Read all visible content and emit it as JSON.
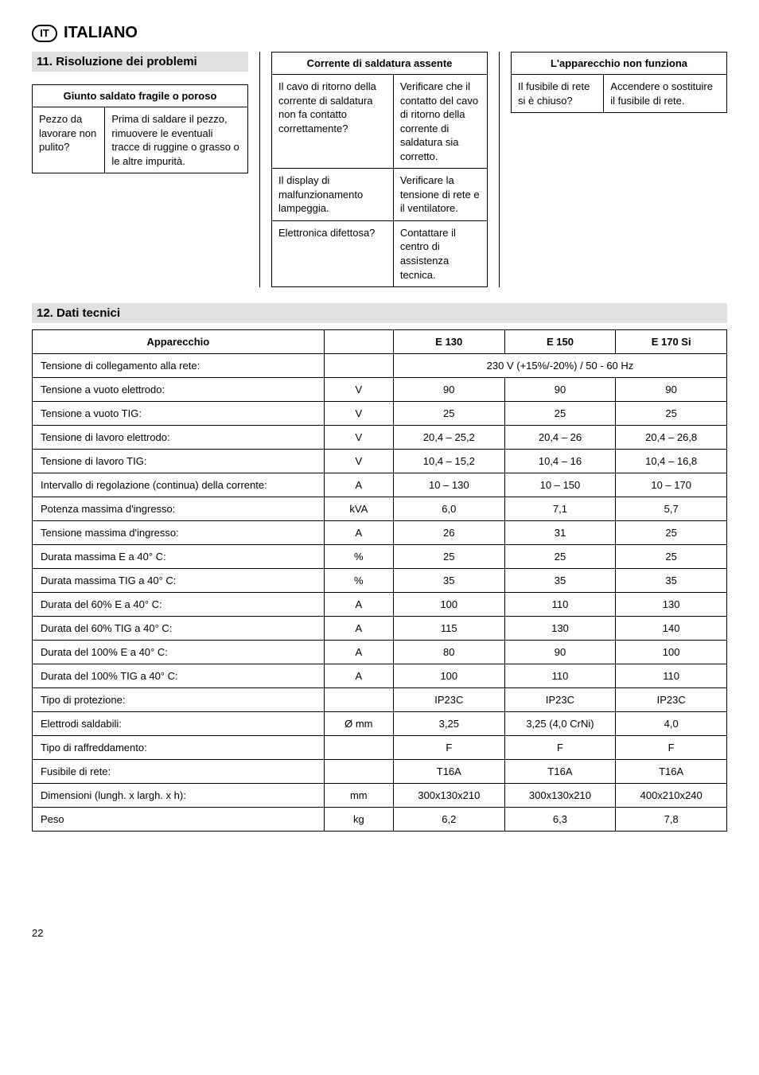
{
  "lang": {
    "code": "IT",
    "label": "ITALIANO"
  },
  "section11": {
    "title": "11. Risoluzione dei problemi"
  },
  "tableA": {
    "header": "Giunto saldato fragile o poroso",
    "rows": [
      {
        "left": "Pezzo da lavorare non pulito?",
        "right": "Prima di saldare il pezzo, rimuovere le eventuali tracce di ruggine o grasso o le altre impurità."
      }
    ]
  },
  "tableB": {
    "header": "Corrente di saldatura assente",
    "rows": [
      {
        "left": "Il cavo di ritorno della corrente di saldatura non fa contatto correttamente?",
        "right": "Verificare che il contatto del cavo di ritorno della corrente di saldatura sia corretto."
      },
      {
        "left": "Il display di malfunzionamento lampeggia.",
        "right": "Verificare la tensione di rete e il ventilatore."
      },
      {
        "left": "Elettronica difettosa?",
        "right": "Contattare il centro di assistenza tecnica."
      }
    ]
  },
  "tableC": {
    "header": "L'apparecchio non funziona",
    "rows": [
      {
        "left": "Il fusibile di rete si è chiuso?",
        "right": "Accendere o sostituire il fusibile di rete."
      }
    ]
  },
  "section12": {
    "title": "12. Dati tecnici"
  },
  "specs": {
    "columns": [
      "Apparecchio",
      "",
      "E 130",
      "E 150",
      "E 170 Si"
    ],
    "rows": [
      {
        "param": "Tensione di collegamento alla rete:",
        "unit": "",
        "span": "230 V (+15%/-20%) / 50 - 60 Hz"
      },
      {
        "param": "Tensione a vuoto elettrodo:",
        "unit": "V",
        "v1": "90",
        "v2": "90",
        "v3": "90"
      },
      {
        "param": "Tensione a vuoto TIG:",
        "unit": "V",
        "v1": "25",
        "v2": "25",
        "v3": "25"
      },
      {
        "param": "Tensione di lavoro elettrodo:",
        "unit": "V",
        "v1": "20,4 – 25,2",
        "v2": "20,4 – 26",
        "v3": "20,4 – 26,8"
      },
      {
        "param": "Tensione di lavoro TIG:",
        "unit": "V",
        "v1": "10,4 – 15,2",
        "v2": "10,4 – 16",
        "v3": "10,4 – 16,8"
      },
      {
        "param": "Intervallo di regolazione (continua) della corrente:",
        "unit": "A",
        "v1": "10 – 130",
        "v2": "10 – 150",
        "v3": "10 – 170"
      },
      {
        "param": "Potenza massima d'ingresso:",
        "unit": "kVA",
        "v1": "6,0",
        "v2": "7,1",
        "v3": "5,7"
      },
      {
        "param": "Tensione massima d'ingresso:",
        "unit": "A",
        "v1": "26",
        "v2": "31",
        "v3": "25"
      },
      {
        "param": "Durata massima E a 40° C:",
        "unit": "%",
        "v1": "25",
        "v2": "25",
        "v3": "25"
      },
      {
        "param": "Durata massima TIG a 40° C:",
        "unit": "%",
        "v1": "35",
        "v2": "35",
        "v3": "35"
      },
      {
        "param": "Durata del 60% E a 40° C:",
        "unit": "A",
        "v1": "100",
        "v2": "110",
        "v3": "130"
      },
      {
        "param": "Durata del 60% TIG a 40° C:",
        "unit": "A",
        "v1": "115",
        "v2": "130",
        "v3": "140"
      },
      {
        "param": "Durata del 100% E a 40° C:",
        "unit": "A",
        "v1": "80",
        "v2": "90",
        "v3": "100"
      },
      {
        "param": "Durata del 100% TIG a 40° C:",
        "unit": "A",
        "v1": "100",
        "v2": "110",
        "v3": "110"
      },
      {
        "param": "Tipo di protezione:",
        "unit": "",
        "v1": "IP23C",
        "v2": "IP23C",
        "v3": "IP23C"
      },
      {
        "param": "Elettrodi saldabili:",
        "unit": "Ø mm",
        "v1": "3,25",
        "v2": "3,25 (4,0 CrNi)",
        "v3": "4,0"
      },
      {
        "param": "Tipo di raffreddamento:",
        "unit": "",
        "v1": "F",
        "v2": "F",
        "v3": "F"
      },
      {
        "param": "Fusibile di rete:",
        "unit": "",
        "v1": "T16A",
        "v2": "T16A",
        "v3": "T16A"
      },
      {
        "param": "Dimensioni (lungh. x largh. x h):",
        "unit": "mm",
        "v1": "300x130x210",
        "v2": "300x130x210",
        "v3": "400x210x240"
      },
      {
        "param": "Peso",
        "unit": "kg",
        "v1": "6,2",
        "v2": "6,3",
        "v3": "7,8"
      }
    ]
  },
  "page": "22"
}
